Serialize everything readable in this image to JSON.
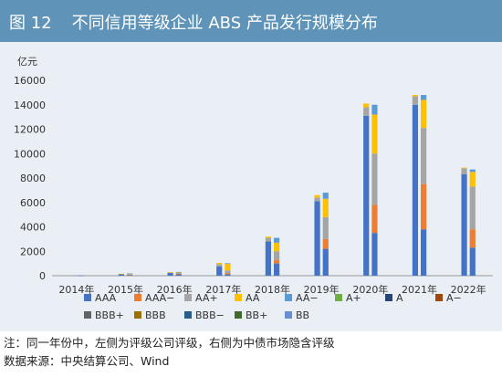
{
  "figure": {
    "number": "图 12",
    "title": "不同信用等级企业 ABS 产品发行规模分布"
  },
  "notes": {
    "note": "注：同一年份中，左侧为评级公司评级，右侧为中债市场隐含评级",
    "source": "数据来源：中央结算公司、Wind"
  },
  "chart_data": {
    "type": "bar",
    "stacked": true,
    "y_unit": "亿元",
    "ylim": [
      0,
      16000
    ],
    "yticks": [
      "0",
      "2000",
      "4000",
      "6000",
      "8000",
      "10000",
      "12000",
      "14000",
      "16000"
    ],
    "categories": [
      "2014年",
      "2015年",
      "2016年",
      "2017年",
      "2018年",
      "2019年",
      "2020年",
      "2021年",
      "2022年"
    ],
    "bar_groups": [
      "评级公司评级",
      "中债市场隐含评级"
    ],
    "series": [
      {
        "name": "AAA",
        "color": "#4472c4",
        "rating_agency": [
          20,
          120,
          220,
          750,
          2800,
          6100,
          13100,
          14000,
          8300
        ],
        "implied": [
          15,
          70,
          120,
          120,
          1000,
          2200,
          3500,
          3800,
          2300
        ]
      },
      {
        "name": "AAA−",
        "color": "#ed7d31",
        "rating_agency": [
          0,
          0,
          0,
          0,
          0,
          0,
          0,
          0,
          0
        ],
        "implied": [
          0,
          20,
          30,
          100,
          300,
          800,
          2300,
          3700,
          1500
        ]
      },
      {
        "name": "AA+",
        "color": "#a5a5a5",
        "rating_agency": [
          5,
          30,
          50,
          200,
          300,
          300,
          700,
          700,
          500
        ],
        "implied": [
          0,
          40,
          80,
          200,
          700,
          1800,
          4200,
          4600,
          3500
        ]
      },
      {
        "name": "AA",
        "color": "#ffc000",
        "rating_agency": [
          0,
          10,
          20,
          100,
          100,
          200,
          300,
          100,
          50
        ],
        "implied": [
          0,
          40,
          60,
          550,
          700,
          1500,
          3200,
          2300,
          1200
        ]
      },
      {
        "name": "AA−",
        "color": "#5b9bd5",
        "rating_agency": [
          0,
          0,
          0,
          0,
          0,
          0,
          0,
          0,
          0
        ],
        "implied": [
          0,
          20,
          20,
          50,
          400,
          500,
          800,
          400,
          200
        ]
      },
      {
        "name": "A+",
        "color": "#70ad47",
        "rating_agency": [
          0,
          0,
          0,
          0,
          0,
          0,
          0,
          0,
          0
        ],
        "implied": [
          0,
          0,
          0,
          0,
          0,
          0,
          0,
          0,
          0
        ]
      },
      {
        "name": "A",
        "color": "#264478",
        "rating_agency": [
          0,
          0,
          0,
          0,
          0,
          0,
          0,
          0,
          0
        ],
        "implied": [
          0,
          0,
          0,
          0,
          0,
          0,
          0,
          0,
          0
        ]
      },
      {
        "name": "A−",
        "color": "#9e480e",
        "rating_agency": [
          0,
          0,
          0,
          0,
          0,
          0,
          0,
          0,
          0
        ],
        "implied": [
          0,
          0,
          0,
          0,
          0,
          0,
          0,
          0,
          0
        ]
      },
      {
        "name": "BBB+",
        "color": "#636363",
        "rating_agency": [
          0,
          0,
          0,
          0,
          0,
          0,
          0,
          0,
          0
        ],
        "implied": [
          0,
          0,
          0,
          0,
          0,
          0,
          0,
          0,
          0
        ]
      },
      {
        "name": "BBB",
        "color": "#997300",
        "rating_agency": [
          0,
          0,
          0,
          0,
          0,
          0,
          0,
          0,
          0
        ],
        "implied": [
          0,
          0,
          0,
          0,
          0,
          0,
          0,
          0,
          0
        ]
      },
      {
        "name": "BBB−",
        "color": "#255e91",
        "rating_agency": [
          0,
          0,
          0,
          0,
          0,
          0,
          0,
          0,
          0
        ],
        "implied": [
          0,
          0,
          0,
          0,
          0,
          0,
          0,
          0,
          0
        ]
      },
      {
        "name": "BB+",
        "color": "#43682b",
        "rating_agency": [
          0,
          0,
          0,
          0,
          0,
          0,
          0,
          0,
          0
        ],
        "implied": [
          0,
          0,
          0,
          0,
          0,
          0,
          0,
          0,
          0
        ]
      },
      {
        "name": "BB",
        "color": "#698ed0",
        "rating_agency": [
          0,
          0,
          0,
          0,
          0,
          0,
          0,
          0,
          0
        ],
        "implied": [
          0,
          0,
          0,
          0,
          0,
          0,
          0,
          0,
          0
        ]
      }
    ],
    "grid": false,
    "legend_position": "bottom"
  }
}
